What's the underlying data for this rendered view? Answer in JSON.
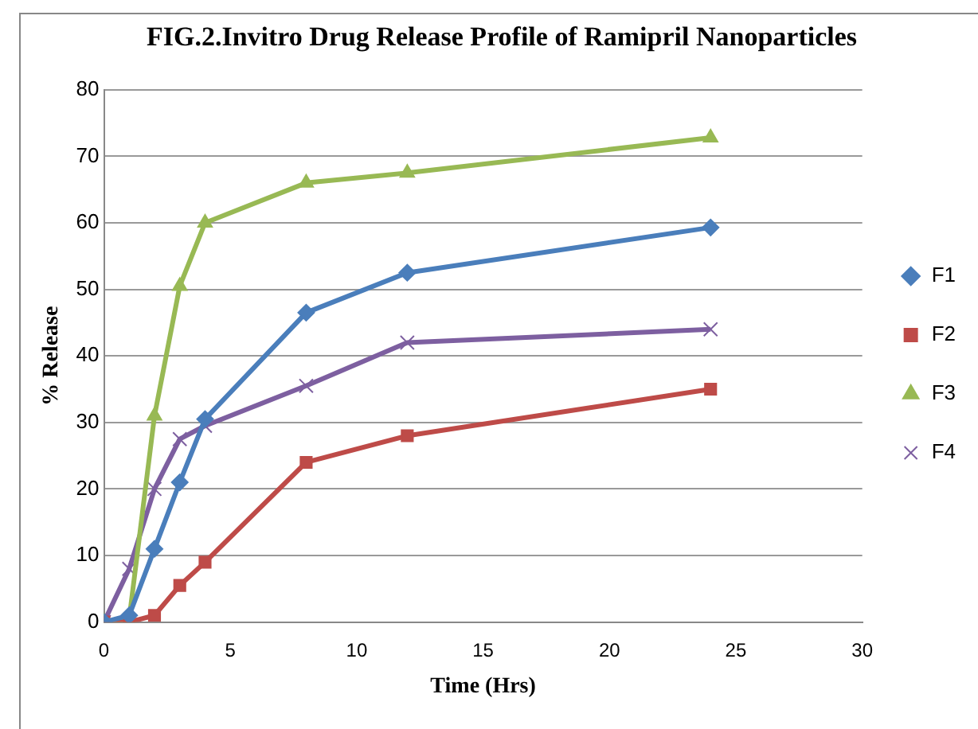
{
  "chart_data": {
    "type": "line",
    "title": "FIG.2.Invitro Drug Release Profile of Ramipril Nanoparticles",
    "xlabel": "Time (Hrs)",
    "ylabel": "% Release",
    "x": [
      0,
      1,
      2,
      3,
      4,
      8,
      12,
      24
    ],
    "series": [
      {
        "name": "F1",
        "color": "#4a7ebb",
        "marker": "diamond",
        "values": [
          0,
          1,
          11,
          21,
          30.5,
          46.5,
          52.5,
          59.3
        ]
      },
      {
        "name": "F2",
        "color": "#be4b48",
        "marker": "square",
        "values": [
          0,
          0,
          1,
          5.5,
          9,
          24,
          28,
          35
        ]
      },
      {
        "name": "F3",
        "color": "#98b954",
        "marker": "triangle",
        "values": [
          0,
          0.5,
          31,
          50.5,
          60,
          66,
          67.5,
          72.8
        ]
      },
      {
        "name": "F4",
        "color": "#7d5fa0",
        "marker": "cross",
        "values": [
          0,
          8,
          20,
          27.5,
          29.5,
          35.5,
          42,
          44
        ]
      }
    ],
    "xlim": [
      0,
      30
    ],
    "xticks": [
      0,
      5,
      10,
      15,
      20,
      25,
      30
    ],
    "ylim": [
      0,
      80
    ],
    "yticks": [
      0,
      10,
      20,
      30,
      40,
      50,
      60,
      70,
      80
    ],
    "grid": "y",
    "legend": "right",
    "line_style": "solid"
  }
}
